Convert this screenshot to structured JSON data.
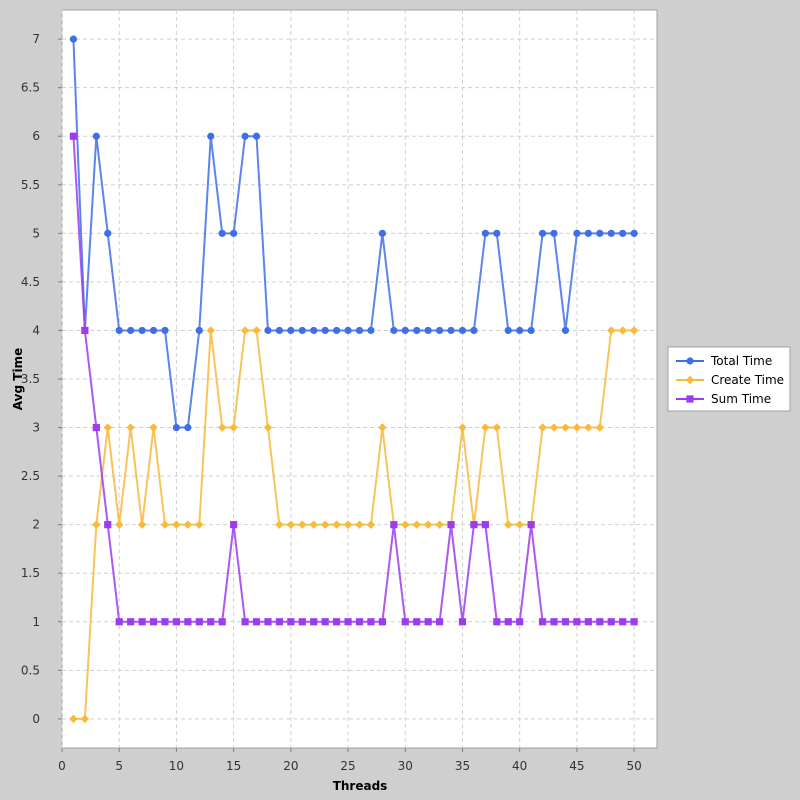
{
  "chart_data": {
    "type": "line",
    "title": "",
    "xlabel": "Threads",
    "ylabel": "Avg Time",
    "xlim": [
      0,
      52
    ],
    "ylim": [
      -0.3,
      7.3
    ],
    "x_ticks": [
      0,
      5,
      10,
      15,
      20,
      25,
      30,
      35,
      40,
      45,
      50
    ],
    "x_tick_labels": [
      "0",
      "5",
      "10",
      "15",
      "20",
      "25",
      "30",
      "35",
      "40",
      "45",
      "50"
    ],
    "y_ticks": [
      0,
      0.5,
      1,
      1.5,
      2,
      2.5,
      3,
      3.5,
      4,
      4.5,
      5,
      5.5,
      6,
      6.5,
      7
    ],
    "y_tick_labels": [
      "0",
      "0.5",
      "1",
      "1.5",
      "2",
      "2.5",
      "3",
      "3.5",
      "4",
      "4.5",
      "5",
      "5.5",
      "6",
      "6.5",
      "7"
    ],
    "grid": true,
    "legend_position": "right",
    "x": [
      1,
      2,
      3,
      4,
      5,
      6,
      7,
      8,
      9,
      10,
      11,
      12,
      13,
      14,
      15,
      16,
      17,
      18,
      19,
      20,
      21,
      22,
      23,
      24,
      25,
      26,
      27,
      28,
      29,
      30,
      31,
      32,
      33,
      34,
      35,
      36,
      37,
      38,
      39,
      40,
      41,
      42,
      43,
      44,
      45,
      46,
      47,
      48,
      49,
      50
    ],
    "series": [
      {
        "name": "Total Time",
        "color": "#3f6ee8",
        "marker": "circle",
        "values": [
          7,
          4,
          6,
          5,
          4,
          4,
          4,
          4,
          4,
          3,
          3,
          4,
          6,
          5,
          5,
          6,
          6,
          4,
          4,
          4,
          4,
          4,
          4,
          4,
          4,
          4,
          4,
          5,
          4,
          4,
          4,
          4,
          4,
          4,
          4,
          4,
          5,
          5,
          4,
          4,
          4,
          5,
          5,
          4,
          5,
          5,
          5,
          5,
          5,
          5
        ]
      },
      {
        "name": "Create Time",
        "color": "#f9b93c",
        "marker": "diamond",
        "values": [
          0,
          0,
          2,
          3,
          2,
          3,
          2,
          3,
          2,
          2,
          2,
          2,
          4,
          3,
          3,
          4,
          4,
          3,
          2,
          2,
          2,
          2,
          2,
          2,
          2,
          2,
          2,
          3,
          2,
          2,
          2,
          2,
          2,
          2,
          3,
          2,
          3,
          3,
          2,
          2,
          2,
          3,
          3,
          3,
          3,
          3,
          3,
          4,
          4,
          4
        ]
      },
      {
        "name": "Sum Time",
        "color": "#9b3cf0",
        "marker": "square",
        "values": [
          6,
          4,
          3,
          2,
          1,
          1,
          1,
          1,
          1,
          1,
          1,
          1,
          1,
          1,
          2,
          1,
          1,
          1,
          1,
          1,
          1,
          1,
          1,
          1,
          1,
          1,
          1,
          1,
          2,
          1,
          1,
          1,
          1,
          2,
          1,
          2,
          2,
          1,
          1,
          1,
          2,
          1,
          1,
          1,
          1,
          1,
          1,
          1,
          1,
          1
        ]
      }
    ]
  }
}
